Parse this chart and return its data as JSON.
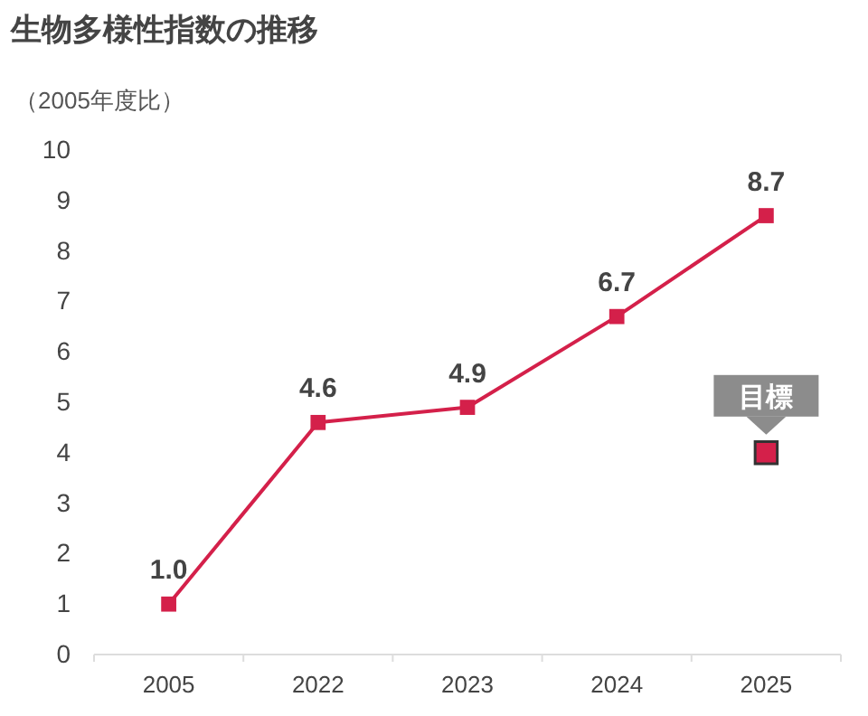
{
  "chart_data": {
    "type": "line",
    "title": "生物多様性指数の推移",
    "ylabel": "（2005年度比）",
    "categories": [
      "2005",
      "2022",
      "2023",
      "2024",
      "2025"
    ],
    "series": [
      {
        "color": "#d4204a",
        "values": [
          1.0,
          4.6,
          4.9,
          6.7,
          8.7
        ],
        "value_labels": [
          "1.0",
          "4.6",
          "4.9",
          "6.7",
          "8.7"
        ],
        "marker": "square"
      },
      {
        "type": "scatter",
        "color": "#d4204a",
        "values": [
          null,
          null,
          null,
          null,
          4
        ],
        "marker": "square"
      }
    ],
    "annotations": [
      {
        "text": "目標",
        "x": "2025",
        "y": 4
      }
    ],
    "ylim": [
      0,
      10
    ],
    "yticks": [
      0,
      1,
      2,
      3,
      4,
      5,
      6,
      7,
      8,
      9,
      10
    ],
    "grid": false
  }
}
